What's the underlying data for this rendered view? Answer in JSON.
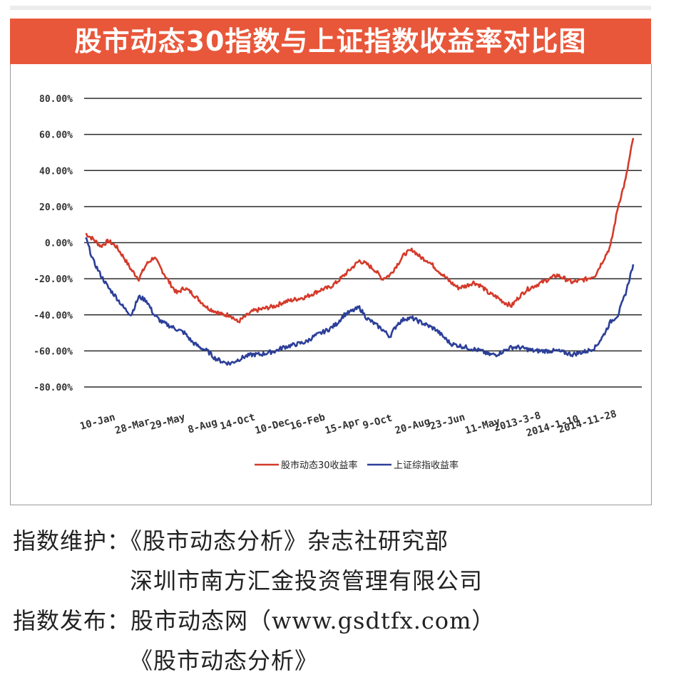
{
  "header": {
    "title": "股市动态30指数与上证指数收益率对比图"
  },
  "chart_data": {
    "type": "line",
    "title": "股市动态30指数与上证指数收益率对比图",
    "y_ticks": [
      "80.00%",
      "60.00%",
      "40.00%",
      "20.00%",
      "0.00%",
      "-20.00%",
      "-40.00%",
      "-60.00%",
      "-80.00%"
    ],
    "x_ticks": [
      "10-Jan",
      "28-Mar",
      "29-May",
      "8-Aug",
      "14-Oct",
      "10-Dec",
      "16-Feb",
      "15-Apr",
      "9-Oct",
      "20-Aug",
      "23-Jun",
      "11-May",
      "2013-3-8",
      "2014-1-10",
      "2014-11-28"
    ],
    "ylim": [
      -80,
      80
    ],
    "grid": true,
    "legend_position": "bottom",
    "series": [
      {
        "name": "股市动态30收益率",
        "color": "#d43a2a",
        "values": [
          5,
          2,
          -2,
          1,
          -2,
          -8,
          -15,
          -20,
          -12,
          -8,
          -15,
          -22,
          -28,
          -25,
          -28,
          -32,
          -36,
          -38,
          -40,
          -40,
          -44,
          -41,
          -38,
          -37,
          -36,
          -35,
          -33,
          -32,
          -31,
          -30,
          -28,
          -26,
          -25,
          -22,
          -18,
          -14,
          -10,
          -12,
          -15,
          -20,
          -18,
          -12,
          -6,
          -4,
          -8,
          -10,
          -14,
          -18,
          -22,
          -25,
          -24,
          -22,
          -24,
          -28,
          -30,
          -33,
          -35,
          -30,
          -26,
          -24,
          -22,
          -20,
          -18,
          -20,
          -22,
          -21,
          -20,
          -18,
          -10,
          -2,
          20,
          35,
          58
        ]
      },
      {
        "name": "上证综指收益率",
        "color": "#2c3f98",
        "values": [
          3,
          -10,
          -18,
          -25,
          -30,
          -36,
          -40,
          -30,
          -32,
          -40,
          -44,
          -46,
          -48,
          -50,
          -55,
          -58,
          -60,
          -64,
          -66,
          -67,
          -65,
          -63,
          -62,
          -62,
          -61,
          -60,
          -58,
          -57,
          -56,
          -55,
          -52,
          -50,
          -48,
          -45,
          -40,
          -38,
          -36,
          -42,
          -45,
          -48,
          -52,
          -45,
          -42,
          -42,
          -44,
          -46,
          -48,
          -52,
          -56,
          -57,
          -58,
          -59,
          -60,
          -62,
          -62,
          -60,
          -58,
          -58,
          -59,
          -60,
          -60,
          -60,
          -60,
          -61,
          -62,
          -61,
          -60,
          -58,
          -52,
          -44,
          -40,
          -28,
          -12
        ]
      }
    ]
  },
  "footer": {
    "line1_label": "指数维护：",
    "line1_value": "《股市动态分析》杂志社研究部",
    "line2_value": "深圳市南方汇金投资管理有限公司",
    "line3_label": "指数发布：",
    "line3_value": "股市动态网（www.gsdtfx.com）",
    "line4_value": "《股市动态分析》"
  }
}
